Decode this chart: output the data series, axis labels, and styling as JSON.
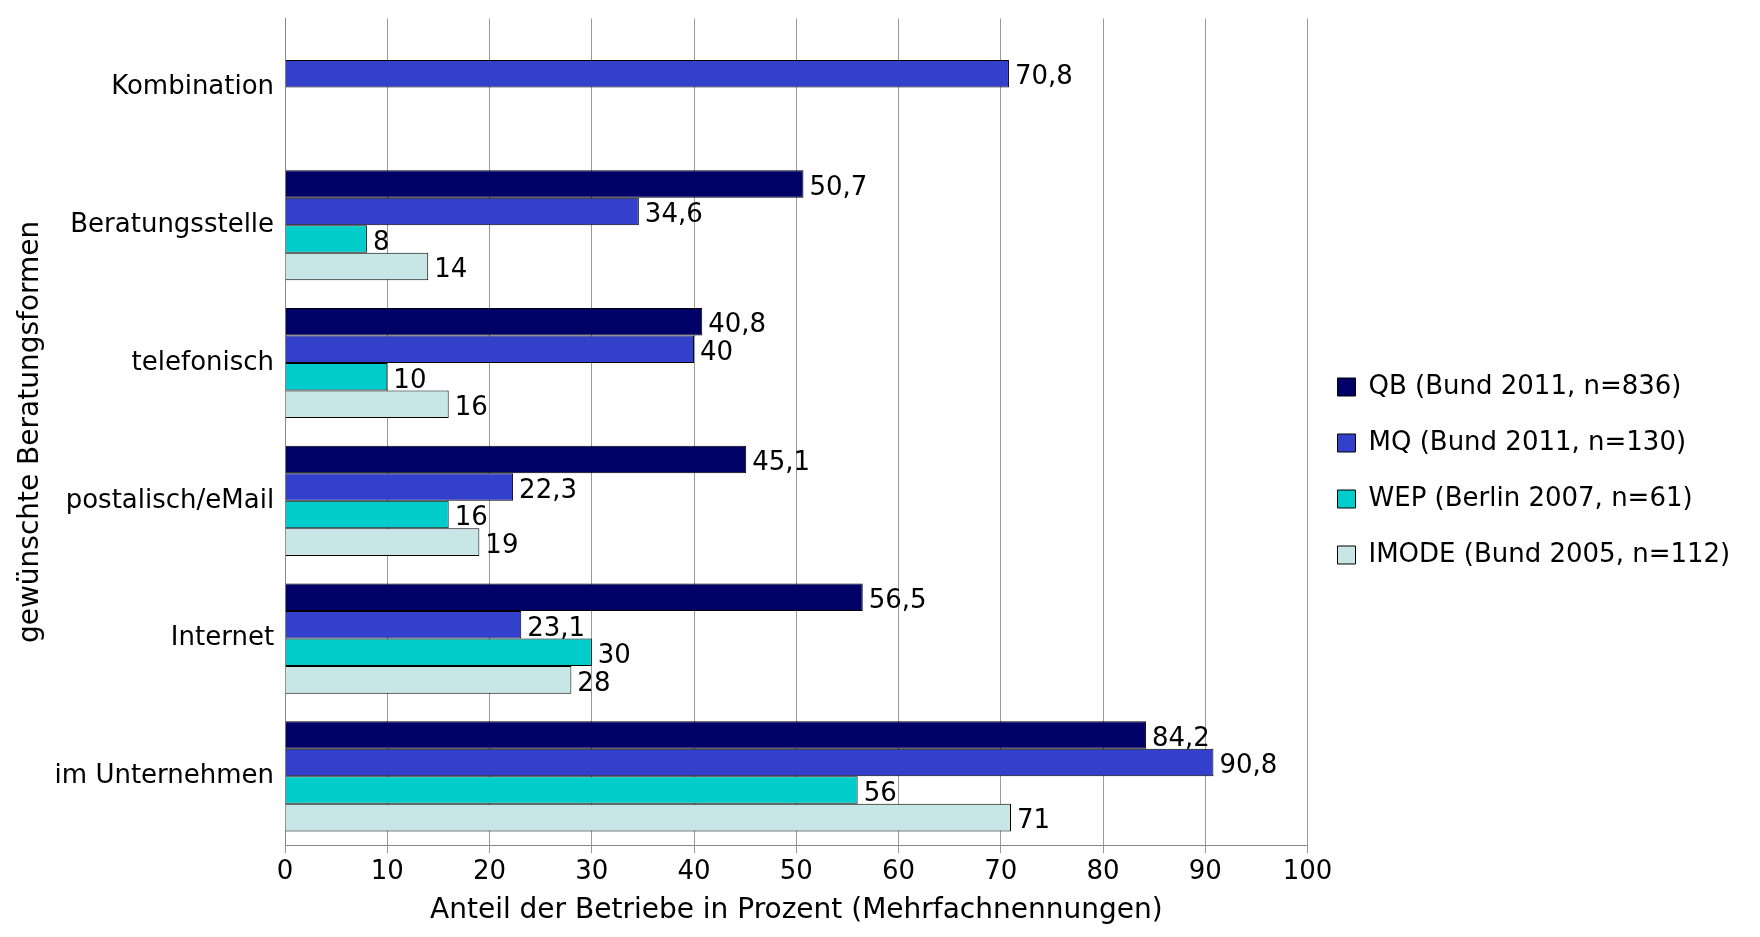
{
  "chart_data": {
    "type": "bar",
    "orientation": "horizontal",
    "xlabel": "Anteil der Betriebe in Prozent (Mehrfachnennungen)",
    "ylabel": "gewünschte Beratungsformen",
    "categories": [
      "Kombination",
      "Beratungsstelle",
      "telefonisch",
      "postalisch/eMail",
      "Internet",
      "im Unternehmen"
    ],
    "series": [
      {
        "name": "QB (Bund 2011, n=836)",
        "color": "#000066",
        "values": [
          null,
          50.7,
          40.8,
          45.1,
          56.5,
          84.2
        ],
        "value_labels": [
          null,
          "50,7",
          "40,8",
          "45,1",
          "56,5",
          "84,2"
        ]
      },
      {
        "name": "MQ (Bund 2011, n=130)",
        "color": "#3340cc",
        "values": [
          70.8,
          34.6,
          40,
          22.3,
          23.1,
          90.8
        ],
        "value_labels": [
          "70,8",
          "34,6",
          "40",
          "22,3",
          "23,1",
          "90,8"
        ]
      },
      {
        "name": "WEP (Berlin 2007, n=61)",
        "color": "#00cccc",
        "values": [
          null,
          8,
          10,
          16,
          30,
          56
        ],
        "value_labels": [
          null,
          "8",
          "10",
          "16",
          "30",
          "56"
        ]
      },
      {
        "name": "IMODE (Bund 2005, n=112)",
        "color": "#c8e6e6",
        "values": [
          null,
          14,
          16,
          19,
          28,
          71
        ],
        "value_labels": [
          null,
          "14",
          "16",
          "19",
          "28",
          "71"
        ]
      }
    ],
    "xlim": [
      0,
      100
    ],
    "xticks": [
      0,
      10,
      20,
      30,
      40,
      50,
      60,
      70,
      80,
      90,
      100
    ],
    "grid": "x",
    "legend": "right"
  }
}
